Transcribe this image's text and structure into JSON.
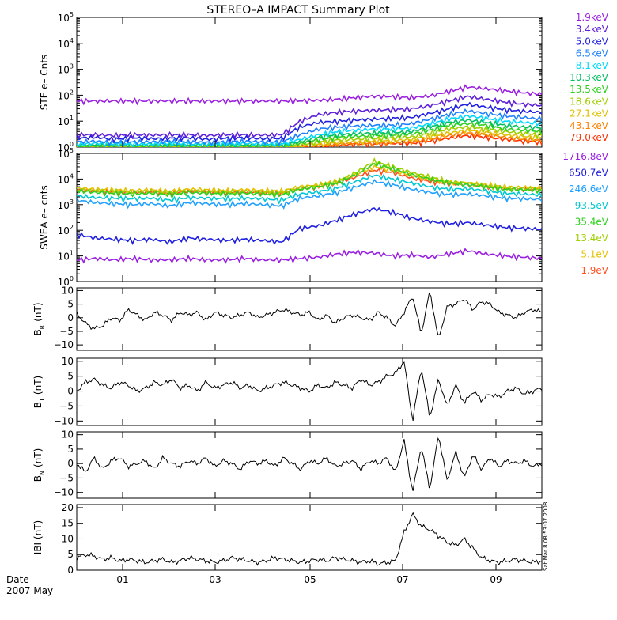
{
  "title": "STEREO–A IMPACT Summary Plot",
  "footer": {
    "date_label": "Date",
    "month_label": "2007 May"
  },
  "x_ticks": [
    "01",
    "03",
    "05",
    "07",
    "09"
  ],
  "side_stamp": "Sat Mar 8 08:53:07 2008",
  "colors": {
    "axis": "#000000",
    "trace": "#000000"
  },
  "chart_data": [
    {
      "type": "line",
      "ylabel": "STE e– Cnts",
      "yscale": "log",
      "ylim": [
        1,
        100000
      ],
      "yticks": [
        {
          "v": 1,
          "base": "10",
          "exp": "0"
        },
        {
          "v": 10,
          "base": "10",
          "exp": "1"
        },
        {
          "v": 100,
          "base": "10",
          "exp": "2"
        },
        {
          "v": 1000,
          "base": "10",
          "exp": "3"
        },
        {
          "v": 10000,
          "base": "10",
          "exp": "4"
        },
        {
          "v": 100000,
          "base": "10",
          "exp": "5"
        }
      ],
      "legend_placement": "right",
      "series": [
        {
          "name": "1.9keV",
          "color": "#9a20e0",
          "values": [
            60,
            60,
            60,
            60,
            60,
            60,
            60,
            60,
            60,
            60,
            60,
            60,
            61,
            64,
            70,
            82,
            92,
            88,
            80,
            95,
            140,
            210,
            180,
            150,
            125,
            110
          ]
        },
        {
          "name": "3.4keV",
          "color": "#6020d8",
          "values": [
            3,
            3,
            2.8,
            3,
            2.9,
            3,
            3,
            2.8,
            3,
            3,
            2.9,
            3,
            10,
            18,
            22,
            25,
            26,
            28,
            30,
            40,
            60,
            90,
            70,
            55,
            45,
            40
          ]
        },
        {
          "name": "5.0keV",
          "color": "#2020e0",
          "values": [
            2.2,
            2.4,
            2,
            2.3,
            2.1,
            2.2,
            2.3,
            2,
            2.2,
            2.3,
            2.1,
            2.2,
            6,
            9,
            10,
            11,
            12,
            13,
            14,
            20,
            30,
            45,
            35,
            28,
            24,
            22
          ]
        },
        {
          "name": "6.5keV",
          "color": "#1e80ff",
          "values": [
            1.6,
            1.7,
            1.5,
            1.6,
            1.6,
            1.7,
            1.6,
            1.5,
            1.6,
            1.7,
            1.6,
            1.6,
            3,
            5,
            6,
            6.5,
            7,
            7,
            8,
            12,
            18,
            25,
            20,
            16,
            14,
            12
          ]
        },
        {
          "name": "8.1keV",
          "color": "#00d8ff",
          "values": [
            1.3,
            1.4,
            1.3,
            1.3,
            1.3,
            1.4,
            1.3,
            1.3,
            1.3,
            1.4,
            1.3,
            1.3,
            2,
            3,
            4,
            4.5,
            5,
            5,
            5.5,
            8,
            12,
            16,
            13,
            10,
            9,
            8
          ]
        },
        {
          "name": "10.3keV",
          "color": "#00c060",
          "values": [
            1.2,
            1.2,
            1.2,
            1.2,
            1.2,
            1.2,
            1.2,
            1.2,
            1.2,
            1.2,
            1.2,
            1.2,
            1.6,
            2.5,
            3,
            3.3,
            3.5,
            3.6,
            4,
            6,
            9,
            11,
            9,
            7,
            6,
            5.5
          ]
        },
        {
          "name": "13.5keV",
          "color": "#30d020",
          "values": [
            1.1,
            1.1,
            1.1,
            1.1,
            1.1,
            1.1,
            1.1,
            1.1,
            1.1,
            1.1,
            1.1,
            1.1,
            1.4,
            2,
            2.4,
            2.6,
            2.8,
            2.9,
            3.2,
            4.5,
            7,
            8,
            7,
            5,
            4.5,
            4
          ]
        },
        {
          "name": "18.6keV",
          "color": "#a0d000",
          "values": [
            1.05,
            1.05,
            1.05,
            1.05,
            1.05,
            1.05,
            1.05,
            1.05,
            1.05,
            1.05,
            1.05,
            1.05,
            1.2,
            1.6,
            1.9,
            2,
            2.2,
            2.3,
            2.5,
            3.4,
            5,
            6,
            5,
            4,
            3.4,
            3
          ]
        },
        {
          "name": "27.1keV",
          "color": "#e0c000",
          "values": [
            1,
            1,
            1,
            1,
            1,
            1,
            1,
            1,
            1,
            1,
            1,
            1,
            1.1,
            1.3,
            1.5,
            1.6,
            1.7,
            1.8,
            2,
            2.6,
            3.5,
            4.5,
            3.8,
            3,
            2.6,
            2.3
          ]
        },
        {
          "name": "43.1keV",
          "color": "#ff8000",
          "values": [
            1,
            1,
            1,
            1,
            1,
            1,
            1,
            1,
            1,
            1,
            1,
            1,
            1,
            1.1,
            1.3,
            1.4,
            1.4,
            1.5,
            1.6,
            2,
            2.8,
            3.5,
            3,
            2.4,
            2,
            1.8
          ]
        },
        {
          "name": "79.0keV",
          "color": "#ff3000",
          "values": [
            1,
            1,
            1,
            1,
            1,
            1,
            1,
            1,
            1,
            1,
            1,
            1,
            1,
            1,
            1.2,
            1.3,
            1.3,
            1.4,
            1.4,
            1.7,
            2.2,
            2.8,
            2.4,
            2,
            1.7,
            1.5
          ]
        }
      ]
    },
    {
      "type": "line",
      "ylabel": "SWEA e– cnts",
      "yscale": "log",
      "ylim": [
        1,
        100000
      ],
      "yticks": [
        {
          "v": 1,
          "base": "10",
          "exp": "0"
        },
        {
          "v": 10,
          "base": "10",
          "exp": "1"
        },
        {
          "v": 100,
          "base": "10",
          "exp": "2"
        },
        {
          "v": 1000,
          "base": "10",
          "exp": "3"
        },
        {
          "v": 10000,
          "base": "10",
          "exp": "4"
        },
        {
          "v": 100000,
          "base": "10",
          "exp": "5"
        }
      ],
      "legend_placement": "right",
      "series": [
        {
          "name": "1716.8eV",
          "color": "#9a20e0",
          "values": [
            7,
            8,
            7,
            8,
            7,
            7,
            8,
            7,
            7,
            8,
            7,
            7,
            8,
            9,
            12,
            14,
            13,
            10,
            11,
            9,
            12,
            16,
            12,
            10,
            9,
            8
          ]
        },
        {
          "name": "650.7eV",
          "color": "#2020e0",
          "values": [
            70,
            50,
            45,
            40,
            45,
            35,
            50,
            45,
            40,
            45,
            40,
            35,
            120,
            150,
            250,
            450,
            700,
            500,
            300,
            220,
            180,
            200,
            160,
            130,
            120,
            110
          ]
        },
        {
          "name": "246.6eV",
          "color": "#20a0ff",
          "values": [
            1500,
            1200,
            1100,
            1000,
            1100,
            900,
            1200,
            1100,
            1000,
            1100,
            1000,
            900,
            1800,
            2200,
            3000,
            5000,
            8000,
            6000,
            4000,
            3000,
            2500,
            2600,
            2200,
            1800,
            1700,
            1600
          ]
        },
        {
          "name": "93.5eV",
          "color": "#00c8d0",
          "values": [
            2200,
            1900,
            1800,
            1700,
            1800,
            1500,
            1900,
            1800,
            1700,
            1800,
            1700,
            1500,
            2600,
            3200,
            4500,
            8000,
            14000,
            10000,
            7000,
            5000,
            4000,
            4200,
            3500,
            2800,
            2600,
            2400
          ]
        },
        {
          "name": "35.4eV",
          "color": "#30d020",
          "values": [
            3500,
            3000,
            2800,
            2600,
            2800,
            2400,
            3000,
            2800,
            2600,
            2800,
            2600,
            2400,
            4000,
            5000,
            7000,
            15000,
            40000,
            25000,
            15000,
            10000,
            7000,
            6000,
            5000,
            4000,
            3800,
            3500
          ]
        },
        {
          "name": "13.4eV",
          "color": "#a0d000",
          "values": [
            4000,
            3500,
            3300,
            3100,
            3300,
            2900,
            3500,
            3300,
            3100,
            3300,
            3100,
            2900,
            4500,
            5500,
            8000,
            18000,
            50000,
            30000,
            18000,
            12000,
            8000,
            7000,
            5500,
            4500,
            4200,
            4000
          ]
        },
        {
          "name": "5.1eV",
          "color": "#e8c000",
          "values": [
            4500,
            4000,
            3800,
            3600,
            3800,
            3400,
            4000,
            3800,
            3600,
            3800,
            3600,
            3400,
            5000,
            6000,
            8500,
            15000,
            30000,
            22000,
            14000,
            10000,
            7500,
            7000,
            6000,
            5000,
            4700,
            4500
          ]
        },
        {
          "name": "1.9eV",
          "color": "#ff5020",
          "values": [
            3800,
            3400,
            3200,
            3000,
            3200,
            2800,
            3400,
            3200,
            3000,
            3200,
            3000,
            2800,
            4200,
            5000,
            7000,
            12000,
            22000,
            18000,
            11000,
            8000,
            6500,
            6000,
            5000,
            4200,
            4000,
            3800
          ]
        }
      ]
    },
    {
      "type": "line",
      "ylabel_main": "B",
      "ylabel_sub": "R",
      "ylabel_unit": "(nT)",
      "ylim": [
        -12,
        11
      ],
      "yticks": [
        {
          "v": -10,
          "label": "−10"
        },
        {
          "v": -5,
          "label": "−5"
        },
        {
          "v": 0,
          "label": "0"
        },
        {
          "v": 5,
          "label": "5"
        },
        {
          "v": 10,
          "label": "10"
        }
      ],
      "series": [
        {
          "name": "",
          "values": [
            1.5,
            -2,
            -4,
            -3,
            0,
            -1,
            3,
            1,
            -1,
            2,
            1,
            -1,
            2,
            1,
            2,
            -1,
            2,
            1,
            0,
            1,
            2,
            0,
            1,
            2,
            3,
            2,
            1,
            2,
            -1,
            1,
            -2,
            0,
            1,
            0,
            -1,
            2,
            0,
            -3,
            2,
            8,
            -6,
            10,
            -8,
            4,
            5,
            7,
            3,
            6,
            5,
            2,
            1,
            0,
            2,
            3,
            2
          ]
        }
      ]
    },
    {
      "type": "line",
      "ylabel_main": "B",
      "ylabel_sub": "T",
      "ylabel_unit": "(nT)",
      "ylim": [
        -11.5,
        11
      ],
      "yticks": [
        {
          "v": -10,
          "label": "−10"
        },
        {
          "v": -5,
          "label": "−5"
        },
        {
          "v": 0,
          "label": "0"
        },
        {
          "v": 5,
          "label": "5"
        },
        {
          "v": 10,
          "label": "10"
        }
      ],
      "series": [
        {
          "name": "",
          "values": [
            0,
            3,
            4,
            2,
            1,
            3,
            2,
            0,
            1,
            3,
            2,
            4,
            1,
            2,
            0,
            3,
            1,
            2,
            3,
            1,
            2,
            0,
            1,
            2,
            3,
            2,
            1,
            0,
            2,
            1,
            3,
            2,
            1,
            4,
            2,
            3,
            5,
            6,
            10,
            -10,
            8,
            -9,
            4,
            -5,
            2,
            -4,
            0,
            -3,
            -1,
            -2,
            0,
            1,
            -1,
            0,
            1
          ]
        }
      ]
    },
    {
      "type": "line",
      "ylabel_main": "B",
      "ylabel_sub": "N",
      "ylabel_unit": "(nT)",
      "ylim": [
        -12,
        11
      ],
      "yticks": [
        {
          "v": -10,
          "label": "−10"
        },
        {
          "v": -5,
          "label": "−5"
        },
        {
          "v": 0,
          "label": "0"
        },
        {
          "v": 5,
          "label": "5"
        },
        {
          "v": 10,
          "label": "10"
        }
      ],
      "series": [
        {
          "name": "",
          "values": [
            0,
            -3,
            2,
            -2,
            1,
            2,
            -1,
            0,
            1,
            -2,
            2,
            0,
            -1,
            1,
            0,
            2,
            -1,
            1,
            0,
            -2,
            1,
            0,
            1,
            -1,
            2,
            0,
            -2,
            1,
            0,
            2,
            -1,
            0,
            1,
            -2,
            1,
            0,
            2,
            -3,
            8,
            -10,
            6,
            -9,
            10,
            -6,
            4,
            -5,
            3,
            -2,
            2,
            -1,
            1,
            0,
            1,
            -1,
            0
          ]
        }
      ]
    },
    {
      "type": "line",
      "ylabel": "IBI (nT)",
      "ylim": [
        0,
        21
      ],
      "yticks": [
        {
          "v": 0,
          "label": "0"
        },
        {
          "v": 5,
          "label": "5"
        },
        {
          "v": 10,
          "label": "10"
        },
        {
          "v": 15,
          "label": "15"
        },
        {
          "v": 20,
          "label": "20"
        }
      ],
      "series": [
        {
          "name": "",
          "values": [
            4,
            5,
            4.5,
            3.5,
            4,
            3,
            3.5,
            3,
            2.5,
            3,
            3.5,
            2.5,
            3,
            4,
            3.5,
            3,
            2.5,
            3,
            4,
            3.5,
            3,
            2.5,
            3,
            4,
            3.5,
            3,
            2.5,
            3,
            3.5,
            3,
            4,
            3.5,
            3,
            2.5,
            3,
            2,
            2.5,
            3,
            12,
            18,
            14,
            13,
            11,
            9,
            8,
            10,
            7,
            4,
            3,
            2.5,
            3,
            3.5,
            3,
            2.5,
            3
          ]
        }
      ]
    }
  ]
}
